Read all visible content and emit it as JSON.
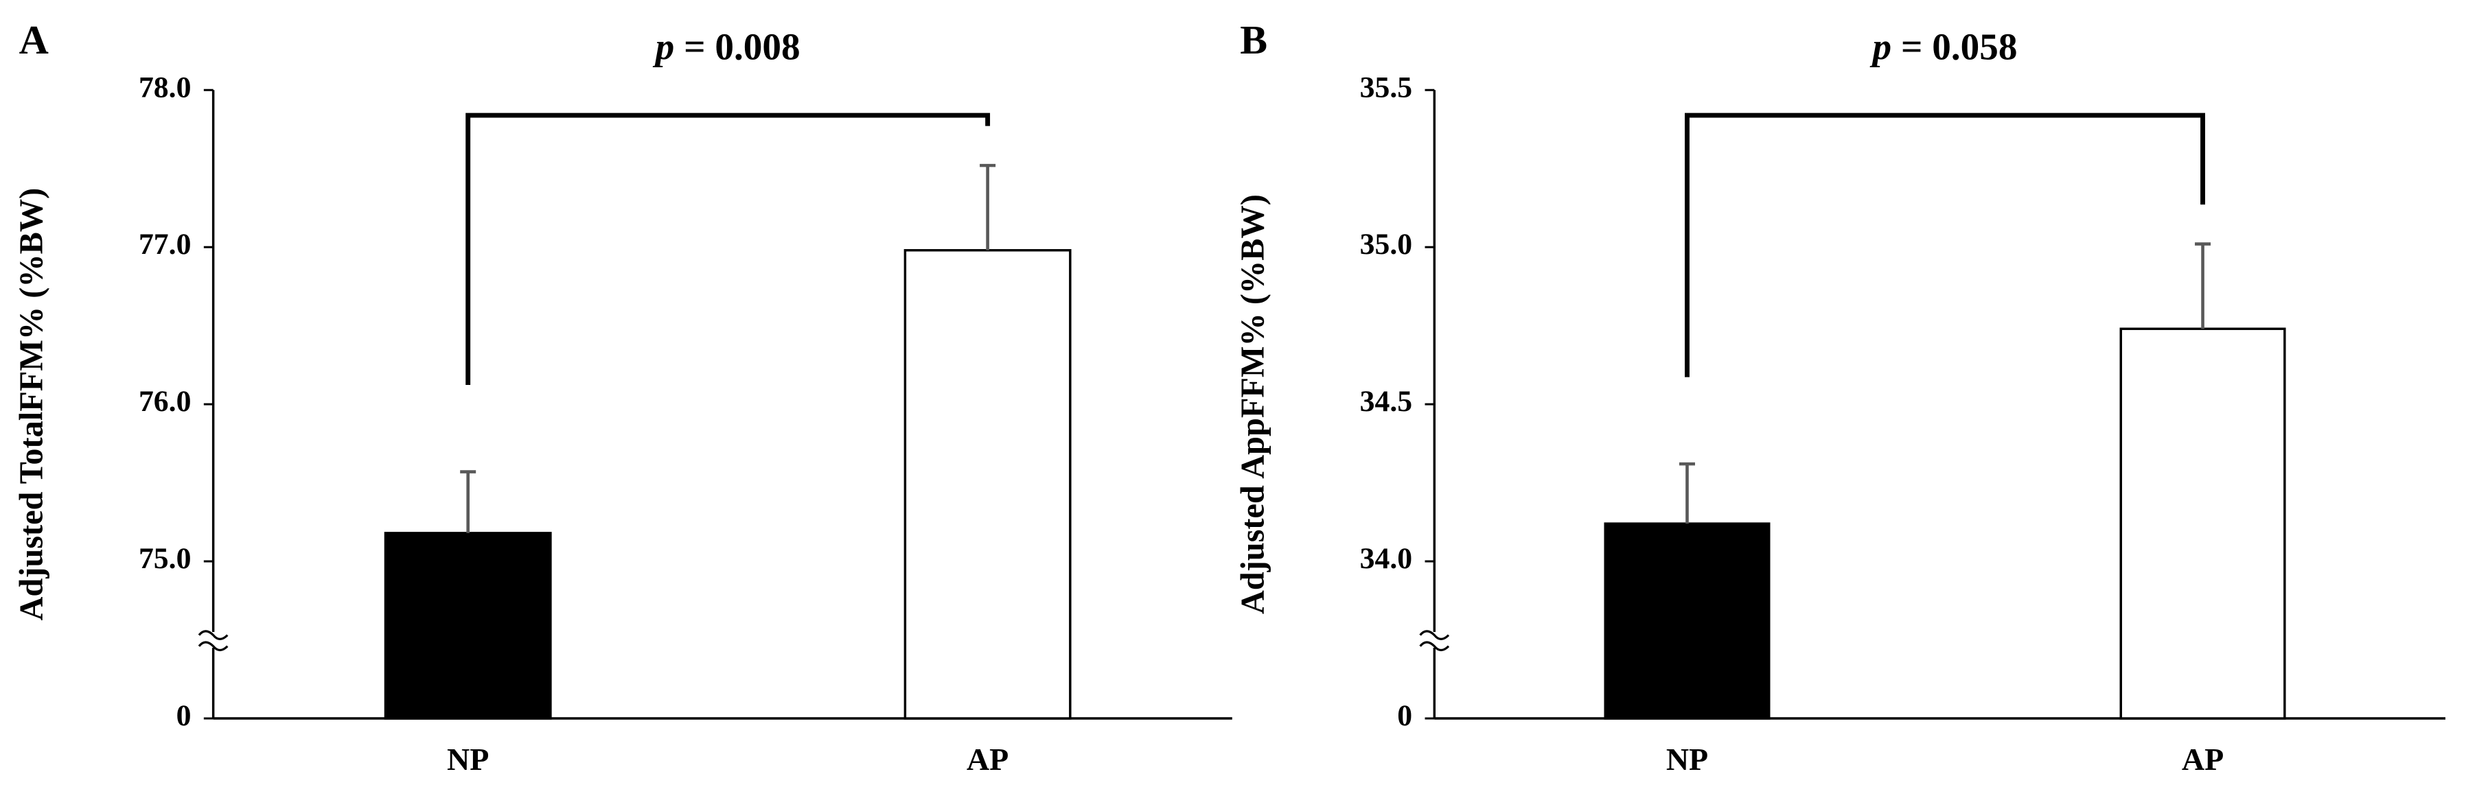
{
  "chart_data": [
    {
      "type": "bar",
      "panel_label": "A",
      "annotation": {
        "symbol": "p",
        "text": "= 0.008"
      },
      "ylabel": "Adjusted TotalFFM% (%BW)",
      "categories": [
        "NP",
        "AP"
      ],
      "values": [
        75.18,
        76.98
      ],
      "errors": [
        0.39,
        0.54
      ],
      "colors": [
        "#000000",
        "#ffffff"
      ],
      "edgecolor": "#000000",
      "errorcolor": "#595959",
      "ylim": [
        0,
        78
      ],
      "yticks": [
        0,
        {
          "value": 75,
          "label": "75.0"
        },
        {
          "value": 76,
          "label": "76.0"
        },
        {
          "value": 77,
          "label": "77.0"
        },
        {
          "value": 78,
          "label": "78.0"
        }
      ],
      "axis_break": true
    },
    {
      "type": "bar",
      "panel_label": "B",
      "annotation": {
        "symbol": "p",
        "text": "= 0.058"
      },
      "ylabel": "Adjusted AppFFM% (%BW)",
      "categories": [
        "NP",
        "AP"
      ],
      "values": [
        34.12,
        34.74
      ],
      "errors": [
        0.19,
        0.27
      ],
      "colors": [
        "#000000",
        "#ffffff"
      ],
      "edgecolor": "#000000",
      "errorcolor": "#595959",
      "ylim": [
        0,
        35.5
      ],
      "yticks": [
        0,
        {
          "value": 34,
          "label": "34.0"
        },
        {
          "value": 34.5,
          "label": "34.5"
        },
        {
          "value": 35,
          "label": "35.0"
        },
        {
          "value": 35.5,
          "label": "35.5"
        }
      ],
      "axis_break": true
    }
  ]
}
